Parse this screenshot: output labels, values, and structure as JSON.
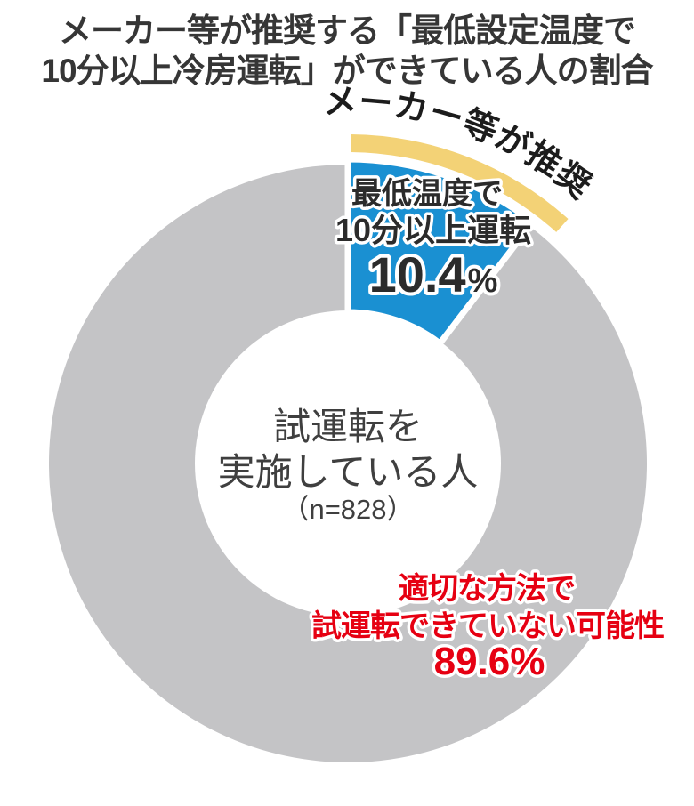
{
  "title": {
    "line1": "メーカー等が推奨する「最低設定温度で",
    "line2": "10分以上冷房運転」ができている人の割合"
  },
  "chart_data": {
    "type": "pie",
    "subtype": "donut",
    "title": "メーカー等が推奨する「最低設定温度で10分以上冷房運転」ができている人の割合",
    "unit": "%",
    "slices": [
      {
        "label": "最低温度で10分以上運転",
        "value": 10.4,
        "color": "#1a90d2",
        "annotation": "メーカー等が推奨"
      },
      {
        "label": "適切な方法で試運転できていない可能性",
        "value": 89.6,
        "color": "#c4c4c6"
      }
    ],
    "center": {
      "line1": "試運転を",
      "line2": "実施している人",
      "sample": "（n=828）"
    },
    "legend_position": "none",
    "start_angle_deg": 0,
    "direction": "clockwise"
  },
  "arc_label": {
    "text": "メーカー等が推奨"
  },
  "blue_label": {
    "line1": "最低温度で",
    "line2": "10分以上運転",
    "value": "10.4",
    "unit": "%"
  },
  "red_label": {
    "line1": "適切な方法で",
    "line2": "試運転できていない可能性",
    "value": "89.6%"
  },
  "colors": {
    "blue": "#1a90d2",
    "gray": "#c4c4c6",
    "yellow": "#f3d276",
    "red": "#e60012",
    "title_text": "#363636"
  }
}
